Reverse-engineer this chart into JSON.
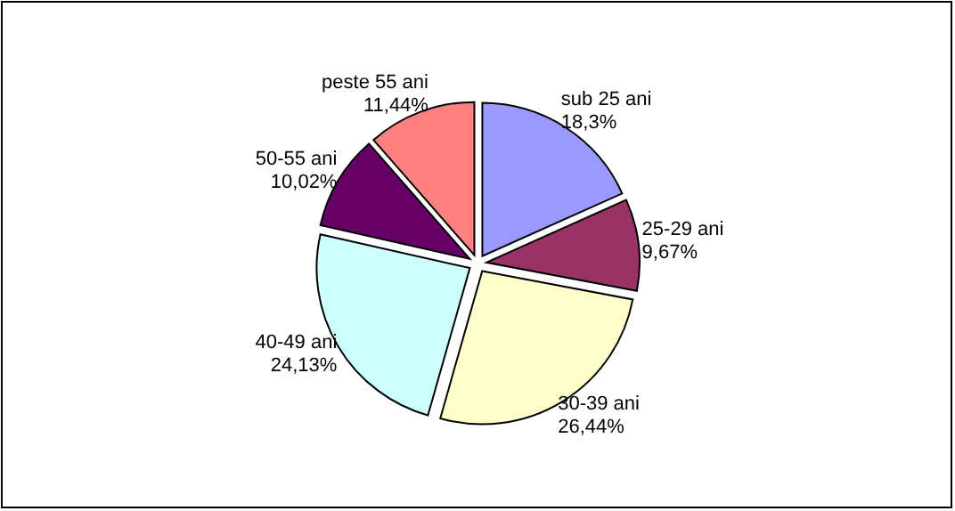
{
  "chart_data": {
    "type": "pie",
    "categories": [
      "sub 25 ani",
      "25-29 ani",
      "30-39 ani",
      "40-49 ani",
      "50-55 ani",
      "peste 55 ani"
    ],
    "values": [
      18.3,
      9.67,
      26.44,
      24.13,
      10.02,
      11.44
    ],
    "value_labels": [
      "18,3%",
      "9,67%",
      "26,44%",
      "24,13%",
      "10,02%",
      "11,44%"
    ],
    "colors": [
      "#9999ff",
      "#993366",
      "#ffffcc",
      "#ccffff",
      "#660066",
      "#ff8080"
    ]
  }
}
